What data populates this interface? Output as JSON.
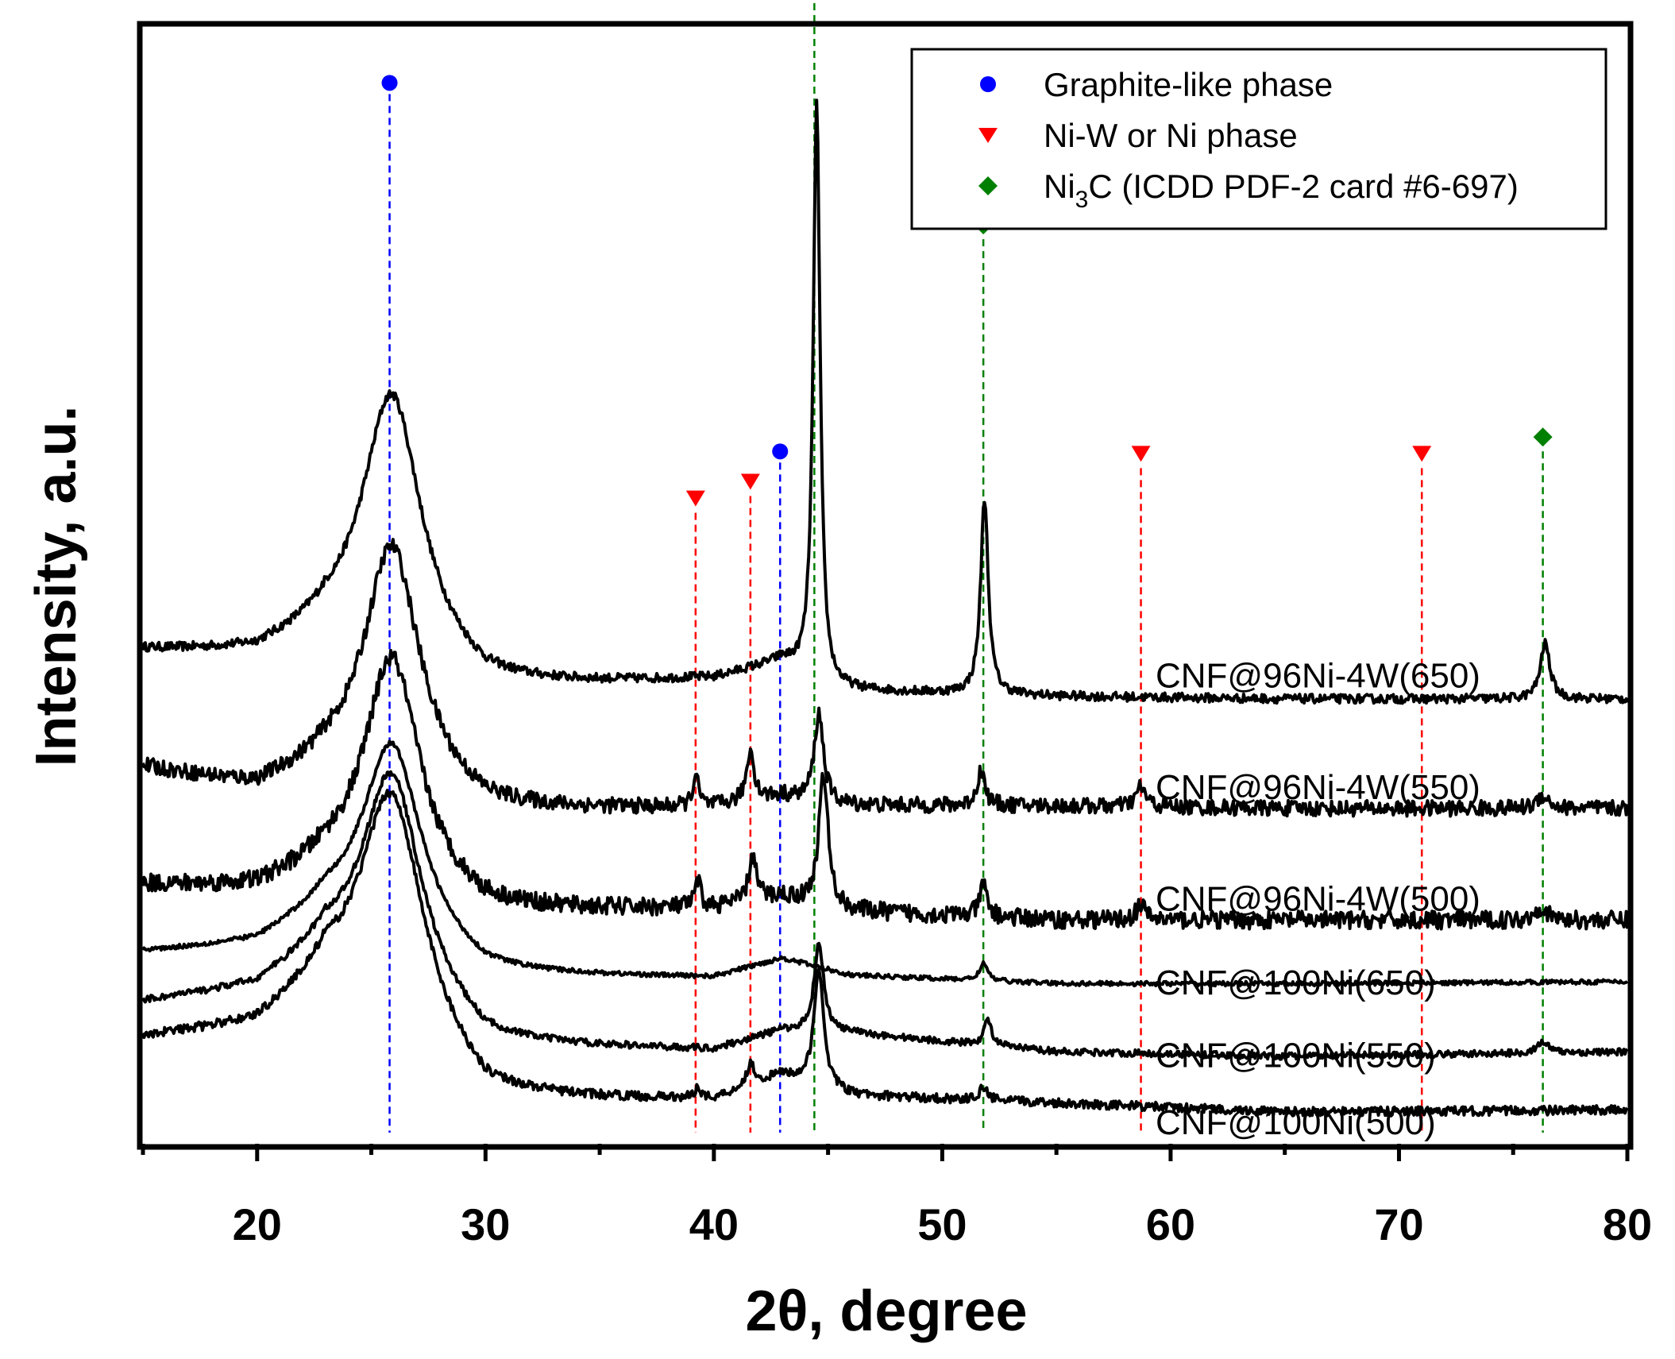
{
  "chart_data": {
    "type": "line",
    "xlabel": "2θ, degree",
    "ylabel": "Intensity, a.u.",
    "xlim": [
      15,
      80
    ],
    "ylim": [
      0,
      100
    ],
    "x_ticks": [
      20,
      30,
      40,
      50,
      60,
      70,
      80
    ],
    "y_ticks_shown": false,
    "legend_position": "top-right",
    "legend": [
      {
        "marker": "circle",
        "color": "#0000ff",
        "label": "Graphite-like phase"
      },
      {
        "marker": "triangle-down",
        "color": "#ff0000",
        "label": "Ni-W or Ni phase"
      },
      {
        "marker": "diamond",
        "color": "#008000",
        "label_main": "Ni",
        "label_sub": "3",
        "label_rest": "C (ICDD PDF-2 card #6-697)"
      }
    ],
    "reference_lines": [
      {
        "phase": "Graphite-like phase",
        "color": "#0000ff",
        "positions": [
          25.8,
          42.9
        ]
      },
      {
        "phase": "Ni-W or Ni phase",
        "color": "#ff0000",
        "positions": [
          39.2,
          41.6,
          58.7,
          71.0
        ]
      },
      {
        "phase": "Ni3C",
        "color": "#008000",
        "positions": [
          44.4,
          51.8,
          76.3
        ]
      }
    ],
    "series": [
      {
        "name": "CNF@96Ni-4W(650)",
        "baseline": 41,
        "noise": 0.4,
        "background": [
          [
            15,
            44
          ],
          [
            20,
            43.5
          ],
          [
            23,
            45
          ],
          [
            30,
            40.5
          ],
          [
            40,
            41.5
          ],
          [
            43,
            43
          ],
          [
            45,
            40.5
          ],
          [
            55,
            40
          ],
          [
            65,
            39.8
          ],
          [
            80,
            39.8
          ]
        ],
        "peaks": [
          {
            "x": 25.9,
            "height": 24,
            "width": 1.6
          },
          {
            "x": 44.5,
            "height": 52,
            "width": 0.18
          },
          {
            "x": 51.85,
            "height": 17.5,
            "width": 0.2
          },
          {
            "x": 76.4,
            "height": 5,
            "width": 0.25
          }
        ]
      },
      {
        "name": "CNF@96Ni-4W(550)",
        "baseline": 30.5,
        "noise": 0.7,
        "background": [
          [
            15,
            33.5
          ],
          [
            20,
            31.5
          ],
          [
            23,
            33
          ],
          [
            30,
            29.5
          ],
          [
            40,
            30
          ],
          [
            43,
            31
          ],
          [
            45,
            30.2
          ],
          [
            55,
            30.2
          ],
          [
            65,
            30
          ],
          [
            80,
            30
          ]
        ],
        "peaks": [
          {
            "x": 25.9,
            "height": 22,
            "width": 1.5
          },
          {
            "x": 39.2,
            "height": 2.8,
            "width": 0.15
          },
          {
            "x": 41.6,
            "height": 4.5,
            "width": 0.2
          },
          {
            "x": 44.6,
            "height": 8,
            "width": 0.25
          },
          {
            "x": 51.7,
            "height": 3.2,
            "width": 0.2
          },
          {
            "x": 58.7,
            "height": 1.8,
            "width": 0.25
          },
          {
            "x": 76.3,
            "height": 1.2,
            "width": 0.3
          }
        ]
      },
      {
        "name": "CNF@96Ni-4W(500)",
        "baseline": 20.5,
        "noise": 0.8,
        "background": [
          [
            15,
            23
          ],
          [
            20,
            22.5
          ],
          [
            23,
            24
          ],
          [
            30,
            20.5
          ],
          [
            40,
            21
          ],
          [
            43,
            22
          ],
          [
            45,
            20.8
          ],
          [
            55,
            20
          ],
          [
            65,
            20
          ],
          [
            80,
            20
          ]
        ],
        "peaks": [
          {
            "x": 25.9,
            "height": 21,
            "width": 1.5
          },
          {
            "x": 39.3,
            "height": 2.3,
            "width": 0.15
          },
          {
            "x": 41.7,
            "height": 4,
            "width": 0.2
          },
          {
            "x": 44.8,
            "height": 12,
            "width": 0.25
          },
          {
            "x": 51.8,
            "height": 2.8,
            "width": 0.2
          },
          {
            "x": 58.7,
            "height": 1.3,
            "width": 0.25
          },
          {
            "x": 76.2,
            "height": 1.2,
            "width": 0.3
          }
        ]
      },
      {
        "name": "CNF@100Ni(650)",
        "baseline": 15,
        "noise": 0.2,
        "background": [
          [
            15,
            17
          ],
          [
            20,
            17.5
          ],
          [
            23,
            20
          ],
          [
            30,
            14.8
          ],
          [
            40,
            14.8
          ],
          [
            43,
            16.5
          ],
          [
            46,
            15
          ],
          [
            55,
            14.3
          ],
          [
            65,
            14.3
          ],
          [
            80,
            14.5
          ]
        ],
        "peaks": [
          {
            "x": 25.9,
            "height": 18,
            "width": 1.6
          },
          {
            "x": 51.8,
            "height": 1.6,
            "width": 0.2
          }
        ]
      },
      {
        "name": "CNF@100Ni(550)",
        "baseline": 8,
        "noise": 0.3,
        "background": [
          [
            15,
            12.5
          ],
          [
            20,
            13.5
          ],
          [
            23,
            16.5
          ],
          [
            30,
            8.5
          ],
          [
            40,
            8.3
          ],
          [
            43,
            10
          ],
          [
            46,
            9.8
          ],
          [
            55,
            8.2
          ],
          [
            65,
            7.8
          ],
          [
            80,
            8.2
          ]
        ],
        "peaks": [
          {
            "x": 25.9,
            "height": 20,
            "width": 1.6
          },
          {
            "x": 44.6,
            "height": 8,
            "width": 0.25
          },
          {
            "x": 52.0,
            "height": 2.3,
            "width": 0.2
          },
          {
            "x": 76.3,
            "height": 1,
            "width": 0.3
          }
        ]
      },
      {
        "name": "CNF@100Ni(500)",
        "baseline": 3,
        "noise": 0.4,
        "background": [
          [
            15,
            9.3
          ],
          [
            20,
            10
          ],
          [
            23,
            13.5
          ],
          [
            30,
            3.6
          ],
          [
            40,
            3.8
          ],
          [
            43,
            6
          ],
          [
            46,
            4.2
          ],
          [
            55,
            3.6
          ],
          [
            65,
            2.8
          ],
          [
            80,
            3
          ]
        ],
        "peaks": [
          {
            "x": 25.9,
            "height": 22,
            "width": 1.7
          },
          {
            "x": 39.3,
            "height": 1,
            "width": 0.15
          },
          {
            "x": 41.6,
            "height": 2,
            "width": 0.2
          },
          {
            "x": 44.6,
            "height": 10.5,
            "width": 0.25
          },
          {
            "x": 51.8,
            "height": 1.2,
            "width": 0.2
          }
        ]
      }
    ],
    "series_label_values": [
      42,
      32,
      22,
      14.5,
      8,
      2
    ]
  }
}
